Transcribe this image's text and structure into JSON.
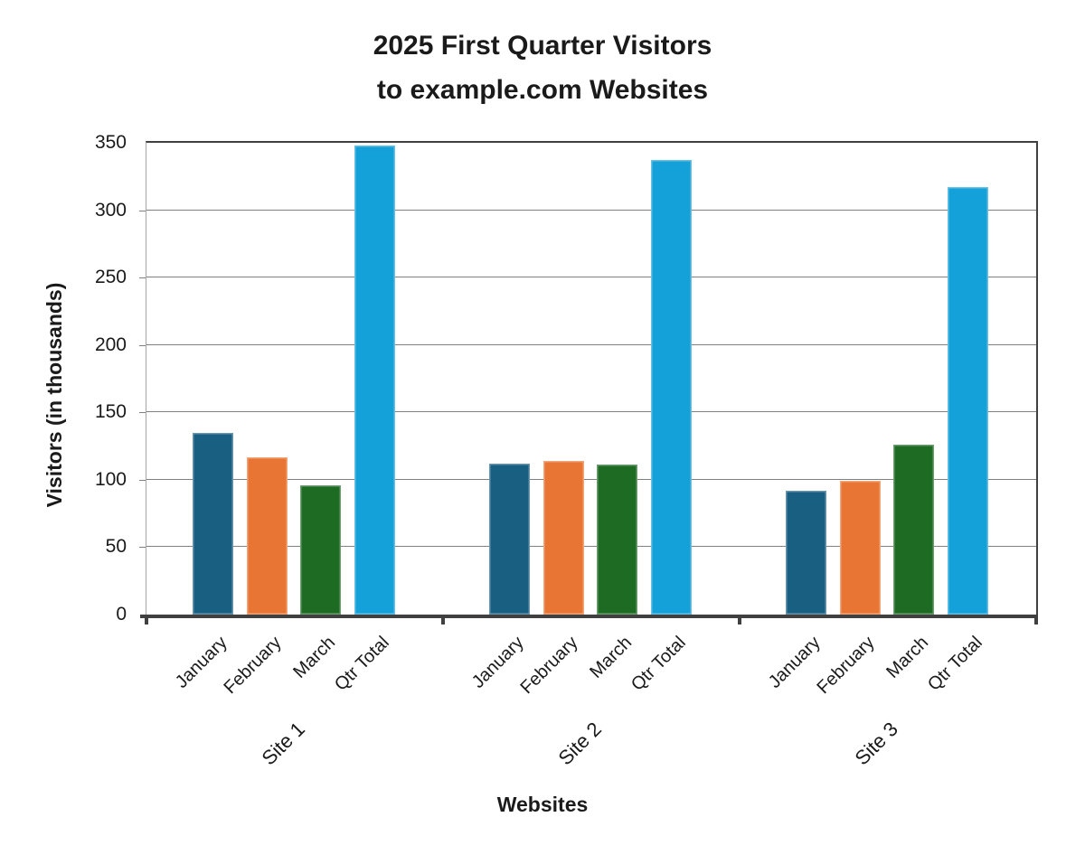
{
  "title": {
    "line1": "2025 First Quarter Visitors",
    "line2": "to example.com Websites"
  },
  "chart_data": {
    "type": "bar",
    "title": "2025 First Quarter Visitors to example.com Websites",
    "xlabel": "Websites",
    "ylabel": "Visitors (in thousands)",
    "ylim": [
      0,
      350
    ],
    "yticks": [
      0,
      50,
      100,
      150,
      200,
      250,
      300,
      350
    ],
    "grid": true,
    "legend": "none",
    "x_tick_label_rotation_deg": 45,
    "categories": [
      "Site 1",
      "Site 2",
      "Site 3"
    ],
    "series": [
      {
        "name": "January",
        "color": "#195f82",
        "values": [
          135,
          112,
          92
        ]
      },
      {
        "name": "February",
        "color": "#e87533",
        "values": [
          117,
          114,
          99
        ]
      },
      {
        "name": "March",
        "color": "#1e6b24",
        "values": [
          96,
          111,
          126
        ]
      },
      {
        "name": "Qtr Total",
        "color": "#14a0d8",
        "values": [
          348,
          337,
          317
        ]
      }
    ],
    "axis_colors": {
      "frame_dark": "#404040",
      "frame_light": "#a6a6a6",
      "gridline": "#808080"
    }
  }
}
